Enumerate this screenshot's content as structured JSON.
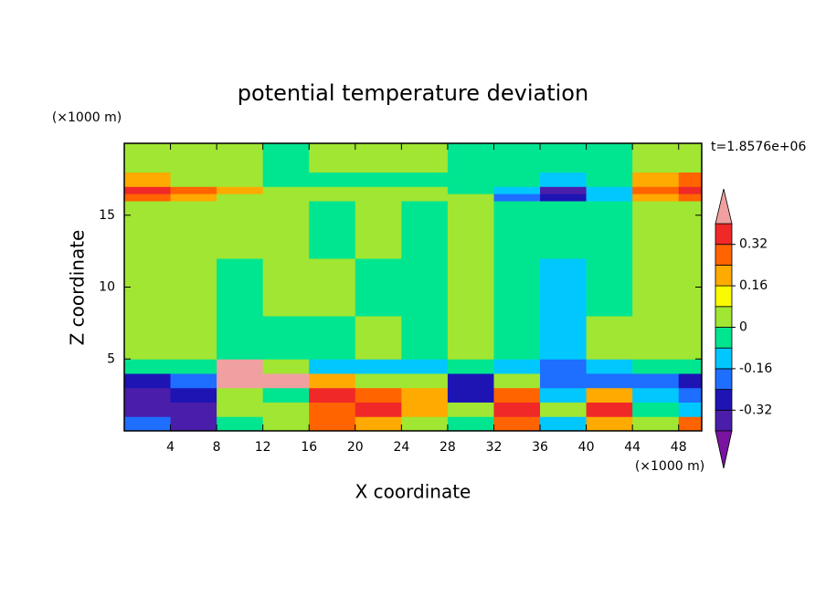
{
  "chart_data": {
    "type": "contour",
    "title": "potential temperature deviation",
    "x_label": "X coordinate",
    "y_label": "Z coordinate",
    "x_unit": "(×1000 m)",
    "y_unit": "(×1000 m)",
    "annotation": "t=1.8576e+06",
    "xlim": [
      0,
      50
    ],
    "ylim": [
      0,
      20
    ],
    "xticks": [
      4,
      8,
      12,
      16,
      20,
      24,
      28,
      32,
      36,
      40,
      44,
      48
    ],
    "yticks": [
      5,
      10,
      15
    ],
    "x_edges": [
      0,
      4,
      8,
      12,
      16,
      20,
      24,
      28,
      32,
      36,
      40,
      44,
      48,
      50
    ],
    "y_edges": [
      0,
      1,
      2,
      3,
      4,
      5,
      8,
      12,
      16,
      16.5,
      17,
      18,
      20
    ],
    "z": [
      [
        -0.2,
        -0.36,
        -0.04,
        0.04,
        0.28,
        0.2,
        0.04,
        -0.04,
        0.28,
        -0.12,
        0.2,
        0.04,
        0.28
      ],
      [
        -0.36,
        -0.36,
        0.04,
        0.04,
        0.28,
        0.36,
        0.2,
        0.04,
        0.36,
        0.04,
        0.36,
        -0.04,
        -0.12
      ],
      [
        -0.36,
        -0.28,
        0.04,
        -0.04,
        0.36,
        0.28,
        0.2,
        -0.28,
        0.28,
        -0.12,
        0.2,
        -0.12,
        -0.2
      ],
      [
        -0.28,
        -0.2,
        0.44,
        0.44,
        0.2,
        0.04,
        0.04,
        -0.28,
        0.04,
        -0.2,
        -0.2,
        -0.2,
        -0.28
      ],
      [
        -0.04,
        -0.04,
        0.44,
        0.04,
        -0.12,
        -0.12,
        -0.12,
        -0.04,
        -0.12,
        -0.2,
        -0.12,
        -0.04,
        -0.04
      ],
      [
        0.04,
        0.04,
        -0.04,
        -0.04,
        -0.04,
        0.04,
        -0.04,
        0.04,
        -0.04,
        -0.12,
        0.04,
        0.04,
        0.04
      ],
      [
        0.04,
        0.04,
        -0.04,
        0.04,
        0.04,
        -0.04,
        -0.04,
        0.04,
        -0.04,
        -0.12,
        -0.04,
        0.04,
        0.04
      ],
      [
        0.04,
        0.04,
        0.04,
        0.04,
        -0.04,
        0.04,
        -0.04,
        0.04,
        -0.04,
        -0.04,
        -0.04,
        0.04,
        0.04
      ],
      [
        0.28,
        0.2,
        0.04,
        0.04,
        0.04,
        0.04,
        0.04,
        0.04,
        -0.2,
        -0.28,
        -0.12,
        0.2,
        0.28
      ],
      [
        0.36,
        0.28,
        0.2,
        0.04,
        0.04,
        0.04,
        0.04,
        -0.04,
        -0.12,
        -0.36,
        -0.12,
        0.28,
        0.36
      ],
      [
        0.2,
        0.04,
        0.04,
        -0.04,
        -0.04,
        -0.04,
        -0.04,
        -0.04,
        -0.04,
        -0.12,
        -0.04,
        0.2,
        0.28
      ],
      [
        0.04,
        0.04,
        0.04,
        -0.04,
        0.04,
        0.04,
        0.04,
        -0.04,
        -0.04,
        -0.04,
        -0.04,
        0.04,
        0.04
      ]
    ],
    "levels": [
      -0.4,
      -0.32,
      -0.24,
      -0.16,
      -0.08,
      0,
      0.08,
      0.16,
      0.24,
      0.32,
      0.4
    ],
    "colors": [
      "#7814a0",
      "#4a1eaa",
      "#1e14b4",
      "#1e6eff",
      "#00c8ff",
      "#00e690",
      "#a0e632",
      "#fafa00",
      "#ffaa00",
      "#ff6400",
      "#f02828",
      "#f0a0a0"
    ],
    "colorbar_ticks": [
      0.32,
      0.16,
      0,
      -0.16,
      -0.32
    ]
  }
}
